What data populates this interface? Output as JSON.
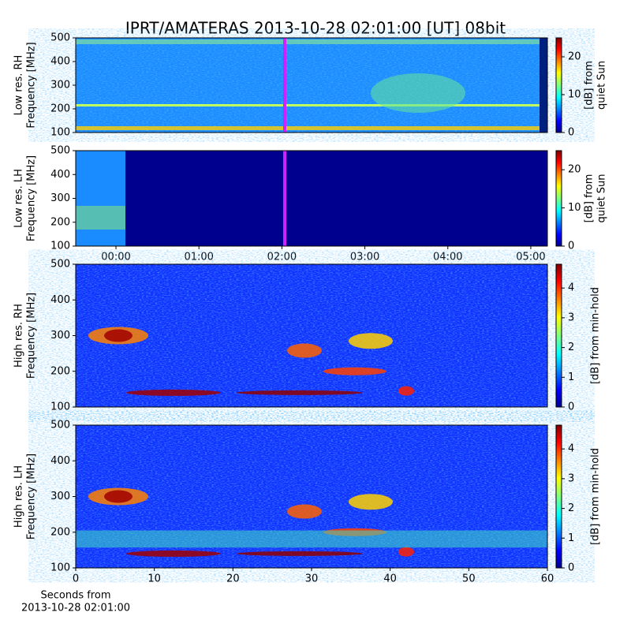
{
  "chart_data": {
    "type": "spectrogram",
    "title": "IPRT/AMATERAS 2013-10-28 02:01:00 [UT]   08bit",
    "panels": [
      {
        "ylabel": [
          "Low res. RH",
          "Frequency [MHz]"
        ],
        "ylim": [
          100,
          500
        ],
        "yticks": [
          100,
          200,
          300,
          400,
          500
        ],
        "clabel": [
          "[dB] from",
          "quiet Sun"
        ],
        "clim": [
          0,
          25
        ],
        "cticks": [
          0,
          10,
          20
        ]
      },
      {
        "ylabel": [
          "Low res. LH",
          "Frequency [MHz]"
        ],
        "ylim": [
          100,
          500
        ],
        "yticks": [
          100,
          200,
          300,
          400,
          500
        ],
        "clabel": [
          "[dB] from",
          "quiet Sun"
        ],
        "clim": [
          0,
          25
        ],
        "cticks": [
          0,
          10,
          20
        ],
        "xlim": [
          -0.485,
          5.2
        ],
        "xticks": [
          {
            "value": 0,
            "label": "00:00"
          },
          {
            "value": 1,
            "label": "01:00"
          },
          {
            "value": 2,
            "label": "02:00"
          },
          {
            "value": 3,
            "label": "03:00"
          },
          {
            "value": 4,
            "label": "04:00"
          },
          {
            "value": 5,
            "label": "05:00"
          }
        ]
      },
      {
        "ylabel": [
          "High res. RH",
          "Frequency [MHz]"
        ],
        "ylim": [
          100,
          500
        ],
        "yticks": [
          100,
          200,
          300,
          400,
          500
        ],
        "clabel": [
          "[dB] from min-hold"
        ],
        "clim": [
          0,
          4.8
        ],
        "cticks": [
          0,
          1,
          2,
          3,
          4
        ]
      },
      {
        "ylabel": [
          "High res. LH",
          "Frequency [MHz]"
        ],
        "ylim": [
          100,
          500
        ],
        "yticks": [
          100,
          200,
          300,
          400,
          500
        ],
        "clabel": [
          "[dB] from min-hold"
        ],
        "clim": [
          0,
          4.8
        ],
        "cticks": [
          0,
          1,
          2,
          3,
          4
        ],
        "xlim": [
          0,
          60
        ],
        "xticks": [
          0,
          10,
          20,
          30,
          40,
          50,
          60
        ],
        "xlabel": [
          "Seconds from",
          "2013-10-28 02:01:00"
        ]
      }
    ]
  }
}
